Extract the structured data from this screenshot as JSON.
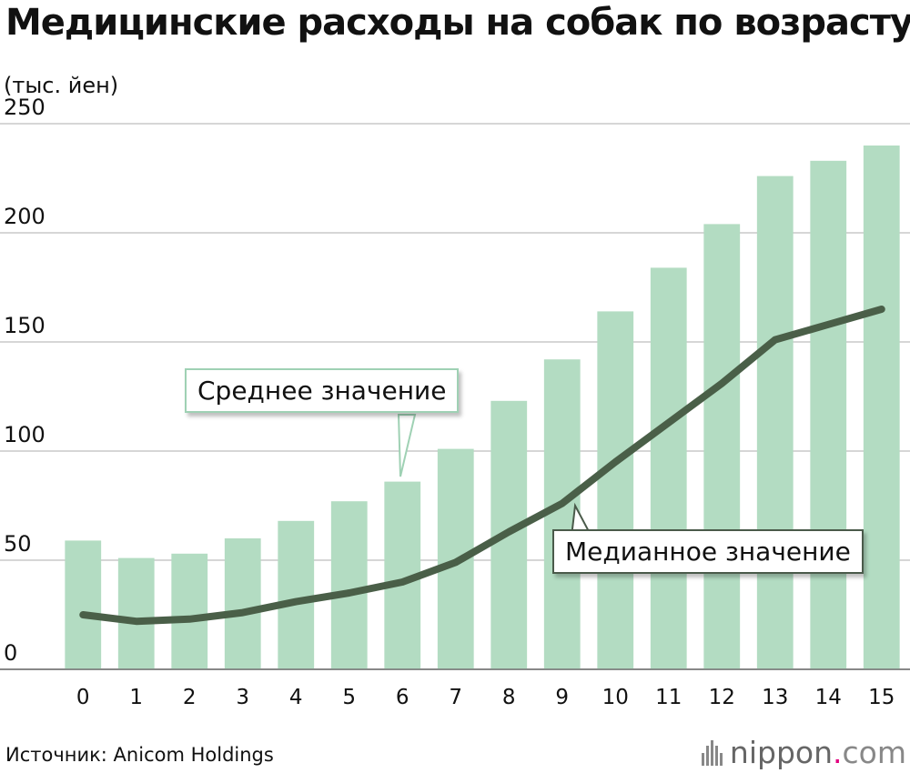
{
  "chart_data": {
    "type": "bar",
    "title": "Медицинские расходы на собак по возрасту",
    "ylabel": "(тыс. йен)",
    "xlabel": "",
    "ylim": [
      0,
      250
    ],
    "yticks": [
      "0",
      "50",
      "100",
      "150",
      "200",
      "250"
    ],
    "categories": [
      "0",
      "1",
      "2",
      "3",
      "4",
      "5",
      "6",
      "7",
      "8",
      "9",
      "10",
      "11",
      "12",
      "13",
      "14",
      "15"
    ],
    "series": [
      {
        "name": "Среднее значение",
        "kind": "bar",
        "color": "#b3dcc2",
        "values": [
          59,
          51,
          53,
          60,
          68,
          77,
          86,
          101,
          123,
          142,
          164,
          184,
          204,
          226,
          233,
          240
        ]
      },
      {
        "name": "Медианное значение",
        "kind": "line",
        "color": "#4a5f48",
        "values": [
          25,
          22,
          23,
          26,
          31,
          35,
          40,
          49,
          63,
          76,
          95,
          113,
          131,
          151,
          158,
          165
        ]
      }
    ],
    "source": "Источник: Anicom Holdings"
  },
  "brand": {
    "name": "nippon",
    "dot": ".",
    "tld": "com",
    "accent": "#e3007f"
  }
}
